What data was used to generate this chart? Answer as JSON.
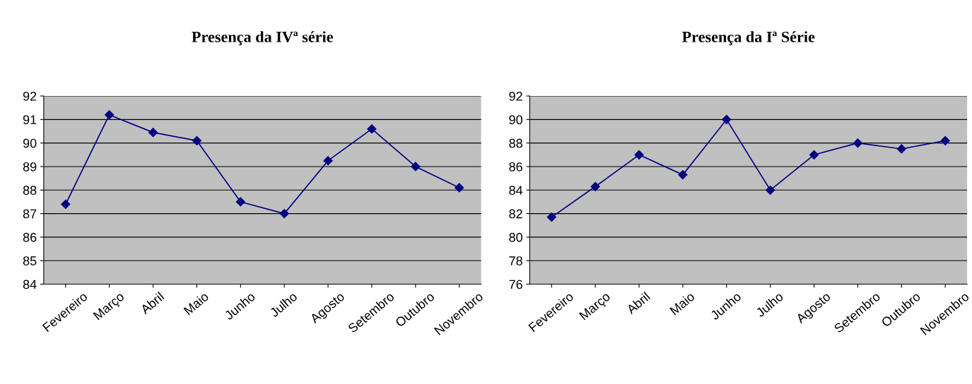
{
  "chart_data": [
    {
      "type": "line",
      "title": "Presença da IVª série",
      "categories": [
        "Fevereiro",
        "Março",
        "Abril",
        "Maio",
        "Junho",
        "Julho",
        "Agosto",
        "Setembro",
        "Outubro",
        "Novembro"
      ],
      "series": [
        {
          "color": "#000080",
          "values": [
            87.4,
            91.2,
            90.45,
            90.1,
            87.5,
            87.0,
            89.25,
            90.6,
            89.0,
            88.1
          ]
        }
      ],
      "ylim": [
        84,
        92
      ],
      "yticks": [
        84,
        85,
        86,
        87,
        88,
        89,
        90,
        91,
        92
      ],
      "grid": "y",
      "marker": "diamond",
      "line_style": "solid",
      "legend": false
    },
    {
      "type": "line",
      "title": "Presença da Iª Série",
      "categories": [
        "Fevereiro",
        "Março",
        "Abril",
        "Maio",
        "Junho",
        "Julho",
        "Agosto",
        "Setembro",
        "Outubro",
        "Novembro"
      ],
      "series": [
        {
          "color": "#000080",
          "values": [
            81.7,
            84.3,
            87.0,
            85.3,
            90.0,
            84.0,
            87.0,
            88.0,
            87.5,
            88.2
          ]
        }
      ],
      "ylim": [
        76,
        92
      ],
      "yticks": [
        76,
        78,
        80,
        82,
        84,
        86,
        88,
        90,
        92
      ],
      "grid": "y",
      "marker": "diamond",
      "line_style": "solid",
      "legend": false
    }
  ]
}
